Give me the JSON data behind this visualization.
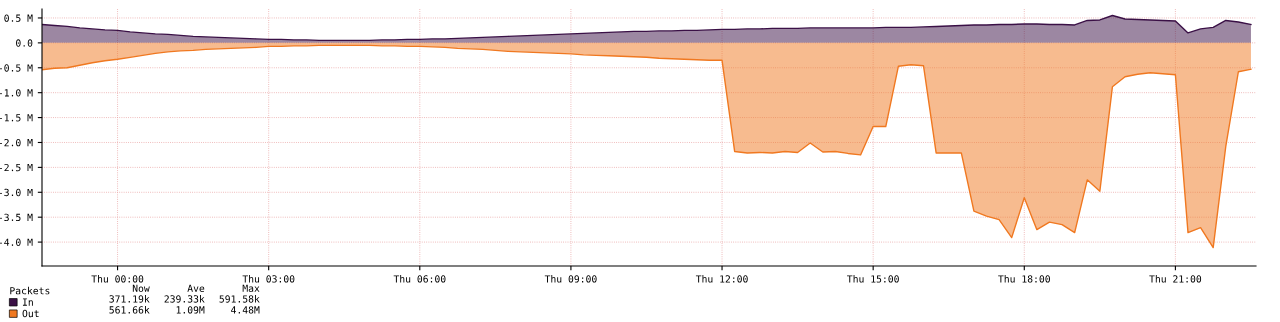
{
  "chart_data": {
    "type": "area",
    "legend_title": "Packets",
    "legend": "bottom left",
    "grid": true,
    "ylim": [
      -4.48,
      0.68
    ],
    "categories": [
      null,
      null,
      null,
      null,
      null,
      null,
      "Thu 00:00",
      null,
      null,
      null,
      null,
      null,
      null,
      null,
      null,
      null,
      null,
      null,
      "Thu 03:00",
      null,
      null,
      null,
      null,
      null,
      null,
      null,
      null,
      null,
      null,
      null,
      "Thu 06:00",
      null,
      null,
      null,
      null,
      null,
      null,
      null,
      null,
      null,
      null,
      null,
      "Thu 09:00",
      null,
      null,
      null,
      null,
      null,
      null,
      null,
      null,
      null,
      null,
      null,
      "Thu 12:00",
      null,
      null,
      null,
      null,
      null,
      null,
      null,
      null,
      null,
      null,
      null,
      "Thu 15:00",
      null,
      null,
      null,
      null,
      null,
      null,
      null,
      null,
      null,
      null,
      null,
      "Thu 18:00",
      null,
      null,
      null,
      null,
      null,
      null,
      null,
      null,
      null,
      null,
      null,
      "Thu 21:00",
      null,
      null,
      null,
      null,
      null,
      null
    ],
    "yticks": [
      {
        "value": 0.5,
        "label": "0.5 M"
      },
      {
        "value": 0,
        "label": "0.0"
      },
      {
        "value": -0.5,
        "label": "-0.5 M"
      },
      {
        "value": -1,
        "label": "-1.0 M"
      },
      {
        "value": -1.5,
        "label": "-1.5 M"
      },
      {
        "value": -2,
        "label": "-2.0 M"
      },
      {
        "value": -2.5,
        "label": "-2.5 M"
      },
      {
        "value": -3,
        "label": "-3.0 M"
      },
      {
        "value": -3.5,
        "label": "-3.5 M"
      },
      {
        "value": -4,
        "label": "-4.0 M"
      }
    ],
    "annotations": [
      "Now",
      "Ave",
      "Max",
      "371.19k",
      "239.33k",
      "591.58k",
      "561.66k",
      "1.09M",
      "4.48M"
    ],
    "series": [
      {
        "name": "In",
        "color": "#3a1046",
        "values": [
          0.37,
          0.35,
          0.33,
          0.3,
          0.28,
          0.26,
          0.25,
          0.22,
          0.2,
          0.18,
          0.17,
          0.15,
          0.13,
          0.12,
          0.11,
          0.1,
          0.09,
          0.08,
          0.07,
          0.07,
          0.06,
          0.06,
          0.05,
          0.05,
          0.05,
          0.05,
          0.05,
          0.06,
          0.06,
          0.07,
          0.07,
          0.08,
          0.08,
          0.09,
          0.1,
          0.11,
          0.12,
          0.13,
          0.14,
          0.15,
          0.16,
          0.17,
          0.18,
          0.19,
          0.2,
          0.21,
          0.22,
          0.23,
          0.23,
          0.24,
          0.24,
          0.25,
          0.25,
          0.26,
          0.27,
          0.27,
          0.28,
          0.28,
          0.29,
          0.29,
          0.29,
          0.3,
          0.3,
          0.3,
          0.3,
          0.3,
          0.3,
          0.31,
          0.31,
          0.31,
          0.32,
          0.33,
          0.34,
          0.35,
          0.36,
          0.36,
          0.37,
          0.37,
          0.38,
          0.38,
          0.37,
          0.37,
          0.36,
          0.45,
          0.46,
          0.55,
          0.48,
          0.47,
          0.46,
          0.45,
          0.44,
          0.2,
          0.28,
          0.31,
          0.45,
          0.42,
          0.37
        ]
      },
      {
        "name": "Out",
        "color": "#f07820",
        "values": [
          -0.54,
          -0.51,
          -0.5,
          -0.45,
          -0.4,
          -0.36,
          -0.33,
          -0.29,
          -0.25,
          -0.21,
          -0.18,
          -0.16,
          -0.15,
          -0.13,
          -0.12,
          -0.11,
          -0.1,
          -0.09,
          -0.07,
          -0.07,
          -0.06,
          -0.06,
          -0.05,
          -0.05,
          -0.05,
          -0.05,
          -0.05,
          -0.06,
          -0.06,
          -0.07,
          -0.07,
          -0.08,
          -0.09,
          -0.11,
          -0.12,
          -0.13,
          -0.15,
          -0.17,
          -0.18,
          -0.19,
          -0.2,
          -0.21,
          -0.22,
          -0.24,
          -0.25,
          -0.26,
          -0.27,
          -0.28,
          -0.29,
          -0.31,
          -0.32,
          -0.33,
          -0.34,
          -0.35,
          -0.35,
          -2.18,
          -2.21,
          -2.2,
          -2.21,
          -2.18,
          -2.2,
          -2.01,
          -2.19,
          -2.18,
          -2.22,
          -2.25,
          -1.68,
          -1.68,
          -0.47,
          -0.44,
          -0.46,
          -2.21,
          -2.21,
          -2.21,
          -3.38,
          -3.48,
          -3.55,
          -3.91,
          -3.11,
          -3.75,
          -3.6,
          -3.65,
          -3.81,
          -2.75,
          -2.98,
          -0.88,
          -0.68,
          -0.63,
          -0.6,
          -0.62,
          -0.64,
          -3.81,
          -3.71,
          -4.11,
          -2.08,
          -0.58,
          -0.53
        ]
      }
    ]
  }
}
